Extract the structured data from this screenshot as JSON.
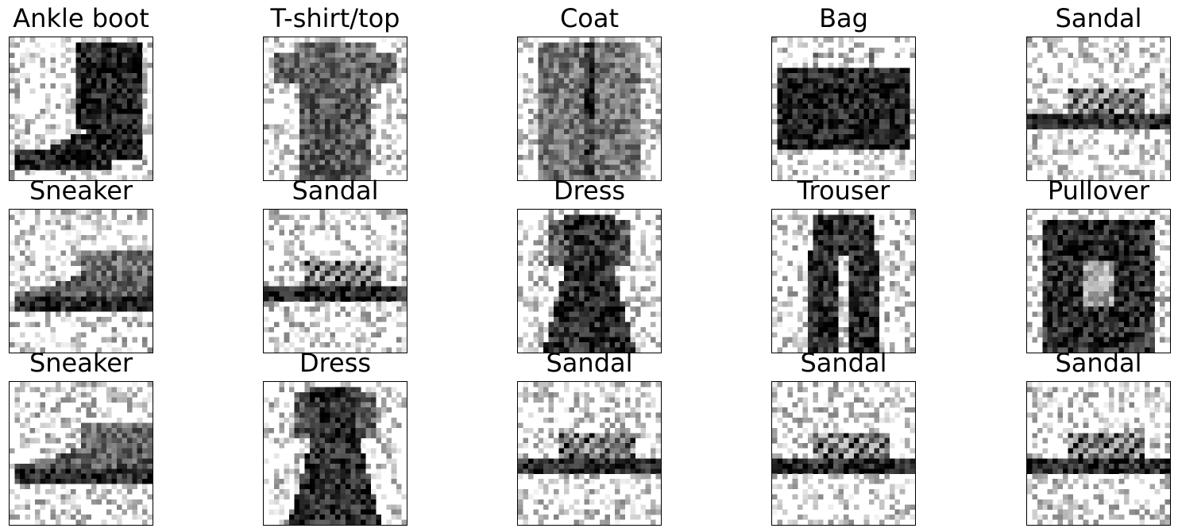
{
  "figure": {
    "rows": 3,
    "cols": 5,
    "colors": {
      "ink": "#000000",
      "paper": "#ffffff",
      "frame": "#000000"
    },
    "images": [
      {
        "title": "Ankle boot",
        "shape": "ankle-boot-silhouette"
      },
      {
        "title": "T-shirt/top",
        "shape": "t-shirt-silhouette"
      },
      {
        "title": "Coat",
        "shape": "coat-silhouette"
      },
      {
        "title": "Bag",
        "shape": "bag-silhouette"
      },
      {
        "title": "Sandal",
        "shape": "sandal-silhouette"
      },
      {
        "title": "Sneaker",
        "shape": "sneaker-silhouette"
      },
      {
        "title": "Sandal",
        "shape": "sandal-silhouette"
      },
      {
        "title": "Dress",
        "shape": "dress-silhouette"
      },
      {
        "title": "Trouser",
        "shape": "trouser-silhouette"
      },
      {
        "title": "Pullover",
        "shape": "pullover-silhouette"
      },
      {
        "title": "Sneaker",
        "shape": "sneaker-silhouette"
      },
      {
        "title": "Dress",
        "shape": "dress-silhouette"
      },
      {
        "title": "Sandal",
        "shape": "sandal-silhouette"
      },
      {
        "title": "Sandal",
        "shape": "sandal-silhouette"
      },
      {
        "title": "Sandal",
        "shape": "sandal-silhouette"
      }
    ]
  }
}
